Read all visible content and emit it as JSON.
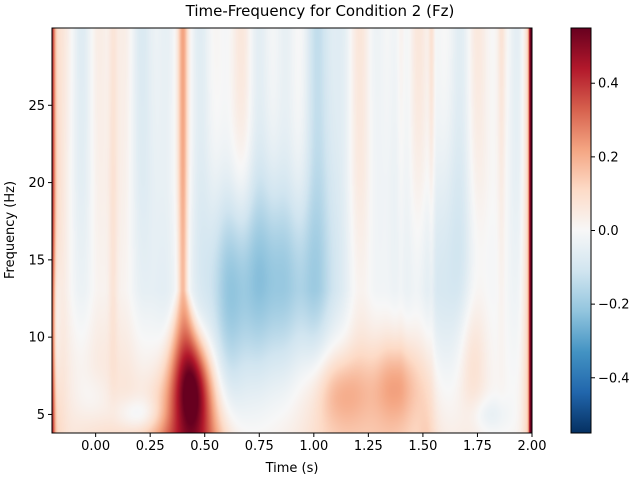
{
  "chart_data": {
    "type": "heatmap",
    "title": "Time-Frequency for Condition 2 (Fz)",
    "xlabel": "Time (s)",
    "ylabel": "Frequency (Hz)",
    "xlim": [
      -0.2,
      2.0
    ],
    "ylim": [
      3.8,
      30
    ],
    "xticks": [
      0.0,
      0.25,
      0.5,
      0.75,
      1.0,
      1.25,
      1.5,
      1.75,
      2.0
    ],
    "xtick_labels": [
      "0.00",
      "0.25",
      "0.50",
      "0.75",
      "1.00",
      "1.25",
      "1.50",
      "1.75",
      "2.00"
    ],
    "yticks": [
      5,
      10,
      15,
      20,
      25
    ],
    "ytick_labels": [
      "5",
      "10",
      "15",
      "20",
      "25"
    ],
    "colormap": "RdBu_r",
    "colorbar": {
      "range": [
        -0.55,
        0.55
      ],
      "ticks": [
        -0.4,
        -0.2,
        0.0,
        0.2,
        0.4
      ],
      "tick_labels": [
        "−0.4",
        "−0.2",
        "0.0",
        "0.2",
        "0.4"
      ]
    },
    "features": [
      {
        "time": -0.19,
        "freq_range": [
          3.8,
          30
        ],
        "value": 0.35
      },
      {
        "time": 0.43,
        "freq_range": [
          4,
          12
        ],
        "value": 0.38
      },
      {
        "time": 0.39,
        "freq_range": [
          12,
          30
        ],
        "value": 0.25
      },
      {
        "time": 1.1,
        "freq_range": [
          4,
          10
        ],
        "value": 0.15
      },
      {
        "time": 1.38,
        "freq_range": [
          4,
          9
        ],
        "value": 0.18
      },
      {
        "time": 1.99,
        "freq_range": [
          3.8,
          30
        ],
        "value": 0.5
      },
      {
        "time": 0.8,
        "freq_range": [
          10,
          18
        ],
        "value": -0.2
      },
      {
        "time": 1.55,
        "freq_range": [
          3.8,
          30
        ],
        "value": 0.12
      },
      {
        "time": 0.2,
        "freq_range": [
          4,
          6
        ],
        "value": -0.12
      }
    ]
  }
}
